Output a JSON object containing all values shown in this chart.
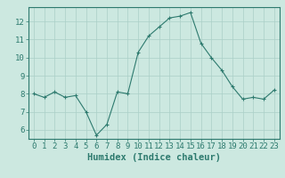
{
  "x": [
    0,
    1,
    2,
    3,
    4,
    5,
    6,
    7,
    8,
    9,
    10,
    11,
    12,
    13,
    14,
    15,
    16,
    17,
    18,
    19,
    20,
    21,
    22,
    23
  ],
  "y": [
    8.0,
    7.8,
    8.1,
    7.8,
    7.9,
    7.0,
    5.7,
    6.3,
    8.1,
    8.0,
    10.3,
    11.2,
    11.7,
    12.2,
    12.3,
    12.5,
    10.8,
    10.0,
    9.3,
    8.4,
    7.7,
    7.8,
    7.7,
    8.2
  ],
  "line_color": "#2d7a6e",
  "marker": "+",
  "marker_size": 3,
  "bg_color": "#cce8e0",
  "grid_color": "#aacfc7",
  "xlabel": "Humidex (Indice chaleur)",
  "xlim": [
    -0.5,
    23.5
  ],
  "ylim": [
    5.5,
    12.8
  ],
  "yticks": [
    6,
    7,
    8,
    9,
    10,
    11,
    12
  ],
  "xticks": [
    0,
    1,
    2,
    3,
    4,
    5,
    6,
    7,
    8,
    9,
    10,
    11,
    12,
    13,
    14,
    15,
    16,
    17,
    18,
    19,
    20,
    21,
    22,
    23
  ],
  "tick_color": "#2d7a6e",
  "label_color": "#2d7a6e",
  "spine_color": "#2d7a6e",
  "xlabel_fontsize": 7.5,
  "tick_fontsize": 6.5
}
